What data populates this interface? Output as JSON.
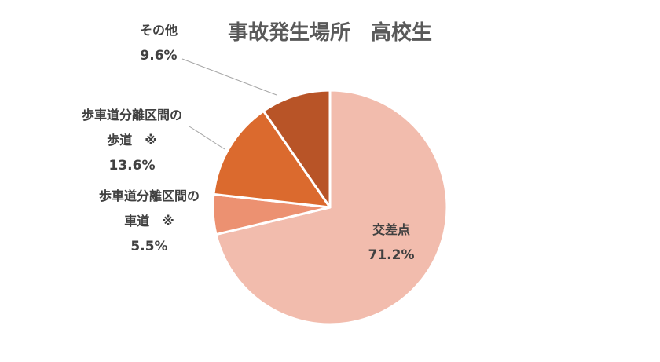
{
  "chart_data": {
    "type": "pie",
    "title": "事故発生場所　高校生",
    "slices": [
      {
        "label_lines": [
          "交差点"
        ],
        "value_label": "71.2%",
        "value": 71.2,
        "color": "#f2bcad"
      },
      {
        "label_lines": [
          "歩車道分離区間の",
          "車道　※"
        ],
        "value_label": "5.5%",
        "value": 5.5,
        "color": "#ec9171"
      },
      {
        "label_lines": [
          "歩車道分離区間の",
          "歩道　※"
        ],
        "value_label": "13.6%",
        "value": 13.6,
        "color": "#db6a2e"
      },
      {
        "label_lines": [
          "その他"
        ],
        "value_label": "9.6%",
        "value": 9.6,
        "color": "#b85427"
      }
    ]
  }
}
